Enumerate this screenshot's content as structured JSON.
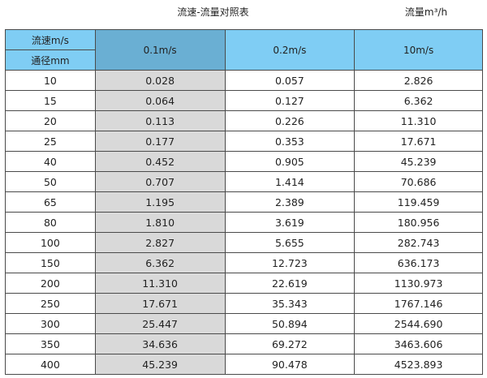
{
  "title": "流速-流量对照表",
  "unit_label": "流量m³/h",
  "colors": {
    "header": "#7fcdf4",
    "header_selected": "#6aafd3",
    "highlight_column": "#d9d9d9"
  },
  "header": {
    "velocity_label": "流速m/s",
    "diameter_label": "通径mm",
    "columns": [
      "0.1m/s",
      "0.2m/s",
      "10m/s"
    ]
  },
  "rows": [
    {
      "dn": "10",
      "v": [
        "0.028",
        "0.057",
        "2.826"
      ]
    },
    {
      "dn": "15",
      "v": [
        "0.064",
        "0.127",
        "6.362"
      ]
    },
    {
      "dn": "20",
      "v": [
        "0.113",
        "0.226",
        "11.310"
      ]
    },
    {
      "dn": "25",
      "v": [
        "0.177",
        "0.353",
        "17.671"
      ]
    },
    {
      "dn": "40",
      "v": [
        "0.452",
        "0.905",
        "45.239"
      ]
    },
    {
      "dn": "50",
      "v": [
        "0.707",
        "1.414",
        "70.686"
      ]
    },
    {
      "dn": "65",
      "v": [
        "1.195",
        "2.389",
        "119.459"
      ]
    },
    {
      "dn": "80",
      "v": [
        "1.810",
        "3.619",
        "180.956"
      ]
    },
    {
      "dn": "100",
      "v": [
        "2.827",
        "5.655",
        "282.743"
      ]
    },
    {
      "dn": "150",
      "v": [
        "6.362",
        "12.723",
        "636.173"
      ]
    },
    {
      "dn": "200",
      "v": [
        "11.310",
        "22.619",
        "1130.973"
      ]
    },
    {
      "dn": "250",
      "v": [
        "17.671",
        "35.343",
        "1767.146"
      ]
    },
    {
      "dn": "300",
      "v": [
        "25.447",
        "50.894",
        "2544.690"
      ]
    },
    {
      "dn": "350",
      "v": [
        "34.636",
        "69.272",
        "3463.606"
      ]
    },
    {
      "dn": "400",
      "v": [
        "45.239",
        "90.478",
        "4523.893"
      ]
    }
  ]
}
